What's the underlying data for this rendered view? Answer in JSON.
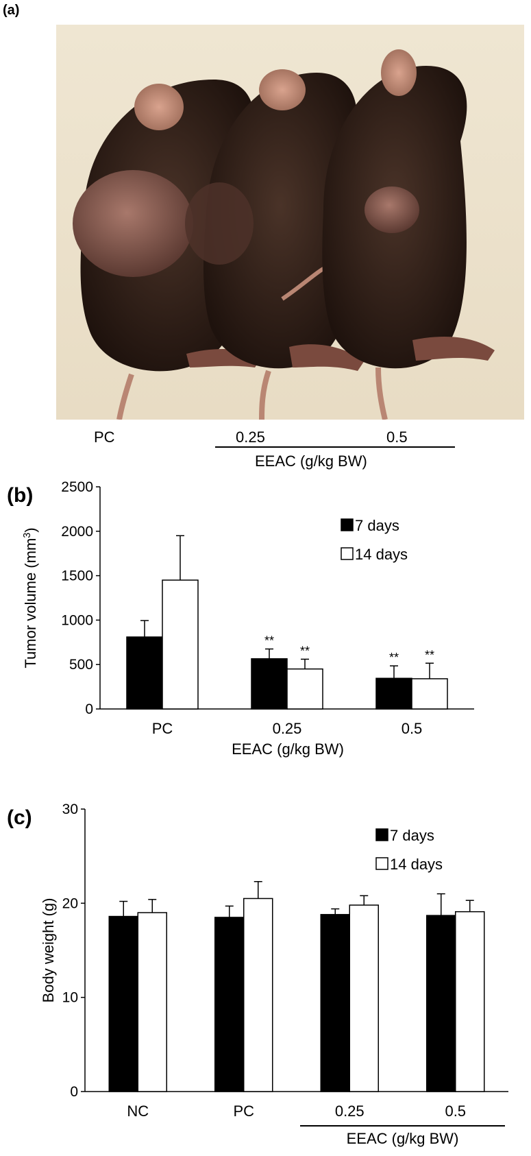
{
  "panel_a": {
    "label": "(a)",
    "group_labels": [
      "PC",
      "0.25",
      "0.5"
    ],
    "bracket_label": "EEAC (g/kg BW)"
  },
  "chart_data": [
    {
      "panel": "(b)",
      "type": "bar",
      "ylabel": "Tumor volume (mm",
      "ylabel_sup": "3",
      "ylabel_close": ")",
      "xlabel": "EEAC (g/kg BW)",
      "categories": [
        "PC",
        "0.25",
        "0.5"
      ],
      "ylim": [
        0,
        2500
      ],
      "yticks": [
        0,
        500,
        1000,
        1500,
        2000,
        2500
      ],
      "legend_position": "top-right",
      "series": [
        {
          "name": "7 days",
          "fill": "#000000",
          "values": [
            810,
            565,
            345
          ],
          "errors": [
            185,
            110,
            140
          ],
          "annotations": [
            "",
            "**",
            "**"
          ]
        },
        {
          "name": "14 days",
          "fill": "#ffffff",
          "values": [
            1450,
            450,
            340
          ],
          "errors": [
            500,
            110,
            175
          ],
          "annotations": [
            "",
            "**",
            "**"
          ]
        }
      ]
    },
    {
      "panel": "(c)",
      "type": "bar",
      "ylabel": "Body weight (g)",
      "xlabel": "EEAC (g/kg BW)",
      "categories": [
        "NC",
        "PC",
        "0.25",
        "0.5"
      ],
      "ylim": [
        0,
        30
      ],
      "yticks": [
        0,
        10,
        20,
        30
      ],
      "legend_position": "top-right",
      "series": [
        {
          "name": "7 days",
          "fill": "#000000",
          "values": [
            18.6,
            18.5,
            18.8,
            18.7
          ],
          "errors": [
            1.6,
            1.2,
            0.6,
            2.3
          ]
        },
        {
          "name": "14 days",
          "fill": "#ffffff",
          "values": [
            19.0,
            20.5,
            19.8,
            19.1
          ],
          "errors": [
            1.4,
            1.8,
            1.0,
            1.2
          ]
        }
      ]
    }
  ]
}
